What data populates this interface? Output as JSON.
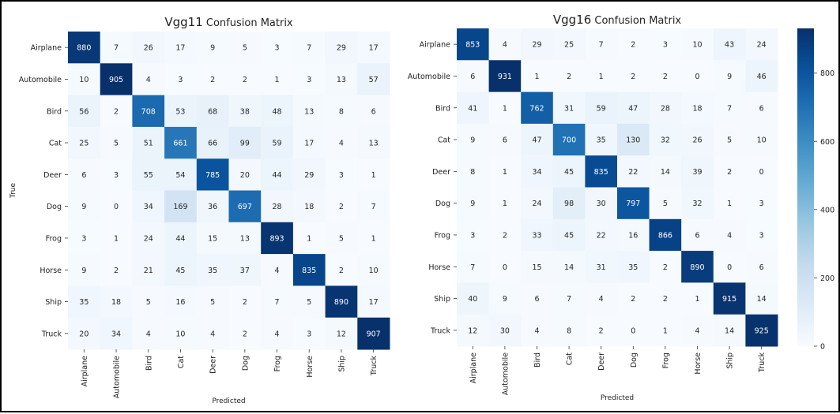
{
  "chart_data": [
    {
      "type": "heatmap",
      "title_prefix": "Vgg11",
      "title_suffix": " Confusion Matrix",
      "xlabel": "Predicted",
      "ylabel": "True",
      "categories": [
        "Airplane",
        "Automobile",
        "Bird",
        "Cat",
        "Deer",
        "Dog",
        "Frog",
        "Horse",
        "Ship",
        "Truck"
      ],
      "values": [
        [
          880,
          7,
          26,
          17,
          9,
          5,
          3,
          7,
          29,
          17
        ],
        [
          10,
          905,
          4,
          3,
          2,
          2,
          1,
          3,
          13,
          57
        ],
        [
          56,
          2,
          708,
          53,
          68,
          38,
          48,
          13,
          8,
          6
        ],
        [
          25,
          5,
          51,
          661,
          66,
          99,
          59,
          17,
          4,
          13
        ],
        [
          6,
          3,
          55,
          54,
          785,
          20,
          44,
          29,
          3,
          1
        ],
        [
          9,
          0,
          34,
          169,
          36,
          697,
          28,
          18,
          2,
          7
        ],
        [
          3,
          1,
          24,
          44,
          15,
          13,
          893,
          1,
          5,
          1
        ],
        [
          9,
          2,
          21,
          45,
          35,
          37,
          4,
          835,
          2,
          10
        ],
        [
          35,
          18,
          5,
          16,
          5,
          2,
          7,
          5,
          890,
          17
        ],
        [
          20,
          34,
          4,
          10,
          4,
          2,
          4,
          3,
          12,
          907
        ]
      ],
      "colormap": "Blues",
      "vmin": 0,
      "vmax": 907
    },
    {
      "type": "heatmap",
      "title_prefix": "Vgg16",
      "title_suffix": " Confusion Matrix",
      "xlabel": "Predicted",
      "ylabel": "",
      "categories": [
        "Airplane",
        "Automobile",
        "Bird",
        "Cat",
        "Deer",
        "Dog",
        "Frog",
        "Horse",
        "Ship",
        "Truck"
      ],
      "values": [
        [
          853,
          4,
          29,
          25,
          7,
          2,
          3,
          10,
          43,
          24
        ],
        [
          6,
          931,
          1,
          2,
          1,
          2,
          2,
          0,
          9,
          46
        ],
        [
          41,
          1,
          762,
          31,
          59,
          47,
          28,
          18,
          7,
          6
        ],
        [
          9,
          6,
          47,
          700,
          35,
          130,
          32,
          26,
          5,
          10
        ],
        [
          8,
          1,
          34,
          45,
          835,
          22,
          14,
          39,
          2,
          0
        ],
        [
          9,
          1,
          24,
          98,
          30,
          797,
          5,
          32,
          1,
          3
        ],
        [
          3,
          2,
          33,
          45,
          22,
          16,
          866,
          6,
          4,
          3
        ],
        [
          7,
          0,
          15,
          14,
          31,
          35,
          2,
          890,
          0,
          6
        ],
        [
          40,
          9,
          6,
          7,
          4,
          2,
          2,
          1,
          915,
          14
        ],
        [
          12,
          30,
          4,
          8,
          2,
          0,
          1,
          4,
          14,
          925
        ]
      ],
      "colormap": "Blues",
      "vmin": 0,
      "vmax": 931,
      "colorbar_ticks": [
        0,
        200,
        400,
        600,
        800
      ]
    }
  ]
}
